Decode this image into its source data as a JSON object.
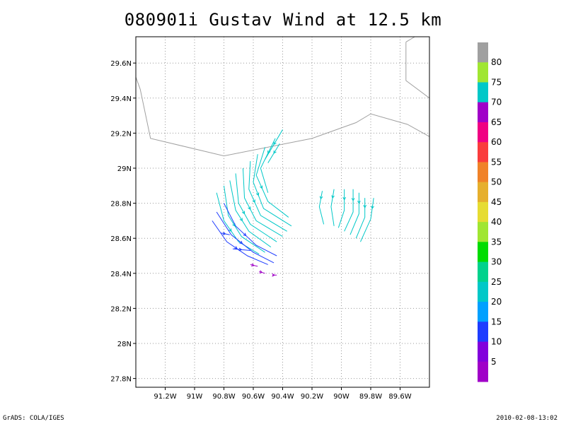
{
  "title": "080901i Gustav Wind at 12.5 km",
  "map": {
    "lon_range": [
      -91.4,
      -89.4
    ],
    "lat_range": [
      27.75,
      29.75
    ],
    "lon_ticks": [
      {
        "value": -91.2,
        "label": "91.2W"
      },
      {
        "value": -91.0,
        "label": "91W"
      },
      {
        "value": -90.8,
        "label": "90.8W"
      },
      {
        "value": -90.6,
        "label": "90.6W"
      },
      {
        "value": -90.4,
        "label": "90.4W"
      },
      {
        "value": -90.2,
        "label": "90.2W"
      },
      {
        "value": -90.0,
        "label": "90W"
      },
      {
        "value": -89.8,
        "label": "89.8W"
      },
      {
        "value": -89.6,
        "label": "89.6W"
      }
    ],
    "lat_ticks": [
      {
        "value": 27.8,
        "label": "27.8N"
      },
      {
        "value": 28.0,
        "label": "28N"
      },
      {
        "value": 28.2,
        "label": "28.2N"
      },
      {
        "value": 28.4,
        "label": "28.4N"
      },
      {
        "value": 28.6,
        "label": "28.6N"
      },
      {
        "value": 28.8,
        "label": "28.8N"
      },
      {
        "value": 29.0,
        "label": "29N"
      },
      {
        "value": 29.2,
        "label": "29.2N"
      },
      {
        "value": 29.4,
        "label": "29.4N"
      },
      {
        "value": 29.6,
        "label": "29.6N"
      }
    ],
    "grid": true,
    "coastline": [
      [
        [
          -91.4,
          29.52
        ],
        [
          -91.37,
          29.45
        ],
        [
          -91.3,
          29.17
        ],
        [
          -90.8,
          29.07
        ],
        [
          -90.2,
          29.17
        ],
        [
          -89.9,
          29.26
        ],
        [
          -89.8,
          29.31
        ],
        [
          -89.55,
          29.25
        ],
        [
          -89.4,
          29.18
        ]
      ],
      [
        [
          -89.56,
          29.72
        ],
        [
          -89.5,
          29.75
        ]
      ],
      [
        [
          -89.56,
          29.72
        ],
        [
          -89.56,
          29.5
        ],
        [
          -89.4,
          29.4
        ]
      ]
    ],
    "streamlines_band1": [
      [
        [
          -90.85,
          28.86
        ],
        [
          -90.8,
          28.7
        ],
        [
          -90.7,
          28.58
        ],
        [
          -90.56,
          28.51
        ]
      ],
      [
        [
          -90.8,
          28.9
        ],
        [
          -90.77,
          28.73
        ],
        [
          -90.68,
          28.61
        ],
        [
          -90.52,
          28.52
        ]
      ],
      [
        [
          -90.76,
          28.93
        ],
        [
          -90.72,
          28.76
        ],
        [
          -90.63,
          28.64
        ],
        [
          -90.48,
          28.55
        ]
      ],
      [
        [
          -90.72,
          28.97
        ],
        [
          -90.7,
          28.8
        ],
        [
          -90.62,
          28.68
        ],
        [
          -90.44,
          28.58
        ]
      ],
      [
        [
          -90.67,
          29.0
        ],
        [
          -90.66,
          28.83
        ],
        [
          -90.58,
          28.7
        ],
        [
          -90.4,
          28.61
        ]
      ],
      [
        [
          -90.62,
          29.04
        ],
        [
          -90.63,
          28.88
        ],
        [
          -90.55,
          28.73
        ],
        [
          -90.37,
          28.64
        ]
      ],
      [
        [
          -90.57,
          29.08
        ],
        [
          -90.6,
          28.92
        ],
        [
          -90.53,
          28.77
        ],
        [
          -90.34,
          28.67
        ]
      ],
      [
        [
          -90.52,
          29.12
        ],
        [
          -90.58,
          28.96
        ],
        [
          -90.5,
          28.81
        ],
        [
          -90.36,
          28.72
        ]
      ],
      [
        [
          -90.45,
          29.17
        ],
        [
          -90.55,
          29.0
        ],
        [
          -90.5,
          28.86
        ]
      ],
      [
        [
          -90.4,
          29.22
        ],
        [
          -90.52,
          29.05
        ]
      ],
      [
        [
          -90.42,
          29.14
        ],
        [
          -90.5,
          29.03
        ]
      ]
    ],
    "streamlines_band2": [
      [
        [
          -90.85,
          28.75
        ],
        [
          -90.75,
          28.62
        ],
        [
          -90.6,
          28.52
        ],
        [
          -90.46,
          28.46
        ]
      ],
      [
        [
          -90.88,
          28.7
        ],
        [
          -90.78,
          28.58
        ],
        [
          -90.64,
          28.5
        ],
        [
          -90.5,
          28.45
        ]
      ],
      [
        [
          -90.8,
          28.8
        ],
        [
          -90.72,
          28.67
        ],
        [
          -90.58,
          28.56
        ],
        [
          -90.44,
          28.5
        ]
      ],
      [
        [
          -90.82,
          28.63
        ],
        [
          -90.76,
          28.62
        ]
      ],
      [
        [
          -90.74,
          28.54
        ],
        [
          -90.62,
          28.53
        ]
      ]
    ],
    "streamlines_band3": [
      [
        [
          -90.62,
          28.45
        ],
        [
          -90.57,
          28.44
        ]
      ],
      [
        [
          -90.56,
          28.41
        ],
        [
          -90.52,
          28.4
        ]
      ],
      [
        [
          -90.47,
          28.39
        ],
        [
          -90.44,
          28.39
        ]
      ]
    ],
    "streamlines_east": [
      [
        [
          -90.13,
          28.87
        ],
        [
          -90.15,
          28.78
        ],
        [
          -90.12,
          28.68
        ]
      ],
      [
        [
          -90.05,
          28.88
        ],
        [
          -90.07,
          28.78
        ],
        [
          -90.05,
          28.67
        ]
      ],
      [
        [
          -89.98,
          28.88
        ],
        [
          -89.98,
          28.76
        ],
        [
          -90.02,
          28.66
        ]
      ],
      [
        [
          -89.92,
          28.88
        ],
        [
          -89.92,
          28.75
        ],
        [
          -89.98,
          28.64
        ]
      ],
      [
        [
          -89.88,
          28.86
        ],
        [
          -89.88,
          28.74
        ],
        [
          -89.94,
          28.62
        ]
      ],
      [
        [
          -89.84,
          28.83
        ],
        [
          -89.84,
          28.72
        ],
        [
          -89.9,
          28.6
        ]
      ],
      [
        [
          -89.78,
          28.83
        ],
        [
          -89.8,
          28.71
        ],
        [
          -89.87,
          28.58
        ]
      ]
    ],
    "colors": {
      "frame": "#000000",
      "grid": "#999999",
      "coast": "#a0a0a0",
      "band1": "#00c8c8",
      "band2": "#1e3cff",
      "band3": "#a000c8"
    }
  },
  "colorbar": {
    "labels": [
      "80",
      "75",
      "70",
      "65",
      "60",
      "55",
      "50",
      "45",
      "40",
      "35",
      "30",
      "25",
      "20",
      "15",
      "10",
      "5"
    ],
    "colors": [
      "#a0a0a0",
      "#a0e632",
      "#00c8c8",
      "#a000c8",
      "#f00082",
      "#fa3c3c",
      "#f08228",
      "#e6af2d",
      "#e6dc32",
      "#a0e632",
      "#00dc00",
      "#00d28c",
      "#00c8c8",
      "#00a0ff",
      "#1e3cff",
      "#8200dc",
      "#a000c8"
    ]
  },
  "footer": {
    "left": "GrADS: COLA/IGES",
    "right": "2010-02-08-13:02"
  }
}
